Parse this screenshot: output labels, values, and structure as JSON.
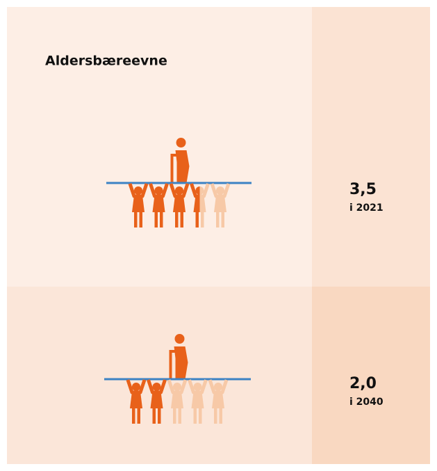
{
  "chart_data": {
    "type": "pictograph",
    "title": "Aldersbæreevne",
    "categories": [
      "i 2021",
      "i 2040"
    ],
    "values": [
      3.5,
      2.0
    ],
    "value_labels": [
      "3,5",
      "2,0"
    ],
    "xlim": [
      0,
      5
    ],
    "color": "#e8611a",
    "faded_color": "#f7c9a7",
    "bar_color": "#3b82c4"
  }
}
